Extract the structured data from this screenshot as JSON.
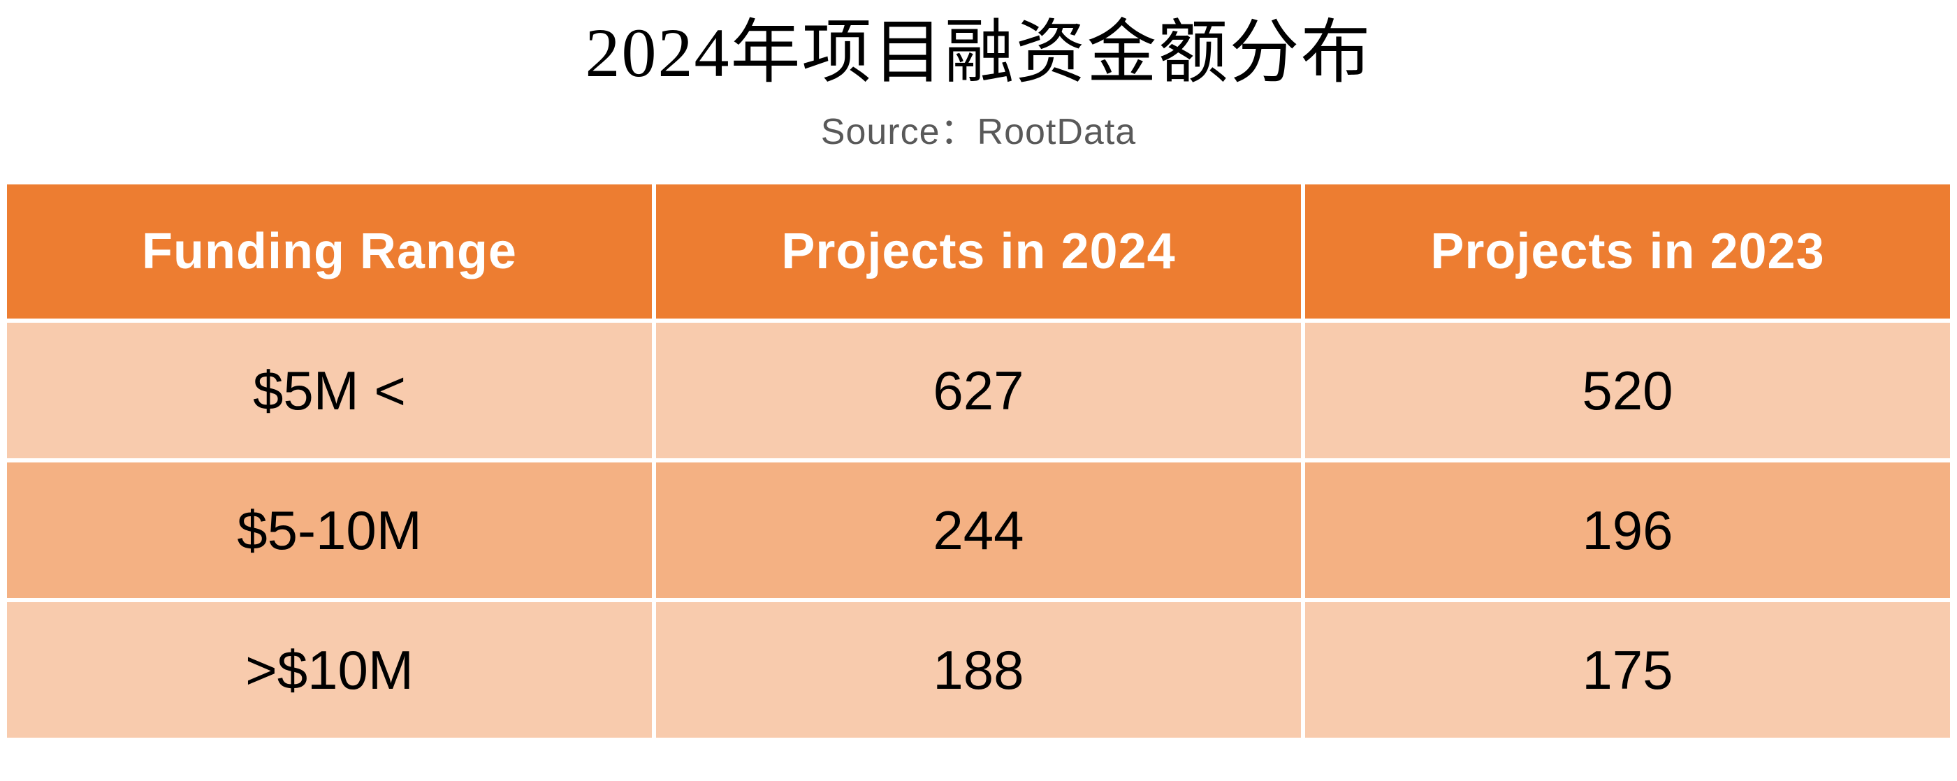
{
  "title": "2024年项目融资金额分布",
  "source": {
    "text": "Source：RootData"
  },
  "colors": {
    "header_bg": "#ED7D31",
    "row_light_bg": "#F8CBAD",
    "row_medium_bg": "#F4B183",
    "header_text": "#FFFFFF",
    "body_text": "#000000",
    "source_text": "#595959",
    "page_bg": "#FFFFFF"
  },
  "table": {
    "headers": [
      {
        "label": "Funding Range"
      },
      {
        "label": "Projects in 2024"
      },
      {
        "label": "Projects in 2023"
      }
    ],
    "rows": [
      {
        "range": "$5M <",
        "projects_2024": "627",
        "projects_2023": "520"
      },
      {
        "range": "$5-10M",
        "projects_2024": "244",
        "projects_2023": "196"
      },
      {
        "range": ">$10M",
        "projects_2024": "188",
        "projects_2023": "175"
      }
    ]
  },
  "chart_data": {
    "type": "table",
    "title": "2024年项目融资金额分布",
    "source": "RootData",
    "columns": [
      "Funding Range",
      "Projects in 2024",
      "Projects in 2023"
    ],
    "categories": [
      "$5M <",
      "$5-10M",
      ">$10M"
    ],
    "series": [
      {
        "name": "Projects in 2024",
        "values": [
          627,
          244,
          188
        ]
      },
      {
        "name": "Projects in 2023",
        "values": [
          520,
          196,
          175
        ]
      }
    ]
  }
}
